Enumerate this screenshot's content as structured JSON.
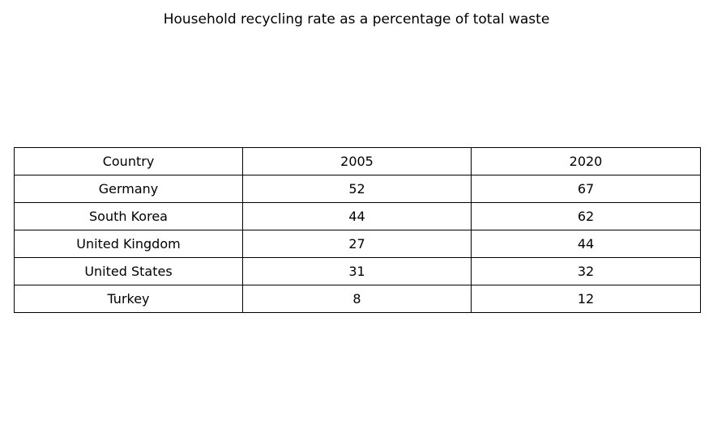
{
  "chart_data": {
    "type": "table",
    "title": "Household recycling rate as a percentage of total waste",
    "columns": [
      "Country",
      "2005",
      "2020"
    ],
    "rows": [
      [
        "Germany",
        "52",
        "67"
      ],
      [
        "South Korea",
        "44",
        "62"
      ],
      [
        "United Kingdom",
        "27",
        "44"
      ],
      [
        "United States",
        "31",
        "32"
      ],
      [
        "Turkey",
        "8",
        "12"
      ]
    ]
  }
}
